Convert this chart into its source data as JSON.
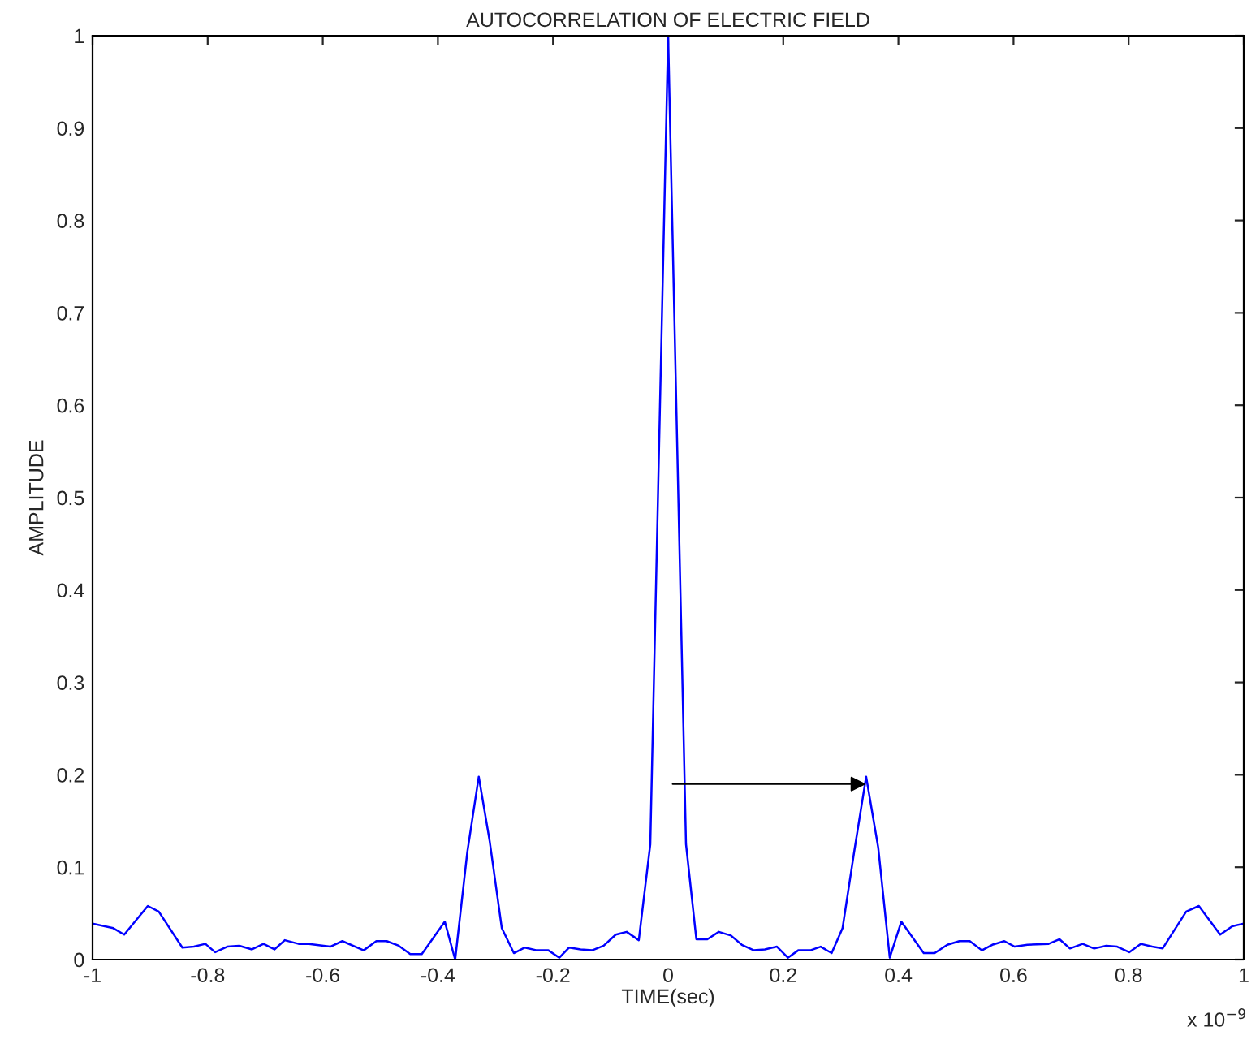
{
  "chart_data": {
    "type": "line",
    "title": "AUTOCORRELATION OF ELECTRIC FIELD",
    "xlabel": "TIME(sec)",
    "ylabel": "AMPLITUDE",
    "xlim": [
      -1,
      1
    ],
    "xticks": [
      -1,
      -0.8,
      -0.6,
      -0.4,
      -0.2,
      0,
      0.2,
      0.4,
      0.6,
      0.8,
      1
    ],
    "ylim": [
      0,
      1
    ],
    "yticks": [
      0,
      0.1,
      0.2,
      0.3,
      0.4,
      0.5,
      0.6,
      0.7,
      0.8,
      0.9,
      1
    ],
    "grid": false,
    "legend": false,
    "line_style": "solid",
    "marker": "none",
    "series": [
      {
        "color": "#0000ff",
        "x": [
          -1,
          -0.964,
          -0.945,
          -0.904,
          -0.885,
          -0.844,
          -0.824,
          -0.804,
          -0.787,
          -0.766,
          -0.745,
          -0.723,
          -0.703,
          -0.684,
          -0.666,
          -0.642,
          -0.624,
          -0.587,
          -0.566,
          -0.529,
          -0.507,
          -0.489,
          -0.468,
          -0.448,
          -0.428,
          -0.388,
          -0.37,
          -0.349,
          -0.329,
          -0.31,
          -0.289,
          -0.268,
          -0.249,
          -0.228,
          -0.208,
          -0.189,
          -0.172,
          -0.152,
          -0.132,
          -0.112,
          -0.091,
          -0.072,
          -0.051,
          -0.031,
          0,
          0.031,
          0.049,
          0.068,
          0.088,
          0.109,
          0.128,
          0.149,
          0.168,
          0.189,
          0.208,
          0.226,
          0.247,
          0.265,
          0.284,
          0.303,
          0.323,
          0.344,
          0.365,
          0.385,
          0.405,
          0.444,
          0.463,
          0.485,
          0.506,
          0.524,
          0.545,
          0.563,
          0.584,
          0.602,
          0.624,
          0.661,
          0.68,
          0.698,
          0.72,
          0.74,
          0.761,
          0.78,
          0.801,
          0.821,
          0.841,
          0.859,
          0.9,
          0.922,
          0.959,
          0.98,
          1
        ],
        "values": [
          0.039,
          0.034,
          0.027,
          0.058,
          0.052,
          0.013,
          0.014,
          0.017,
          0.008,
          0.014,
          0.015,
          0.011,
          0.017,
          0.011,
          0.021,
          0.017,
          0.017,
          0.014,
          0.02,
          0.01,
          0.02,
          0.02,
          0.015,
          0.006,
          0.006,
          0.041,
          0.0,
          0.116,
          0.198,
          0.128,
          0.034,
          0.007,
          0.013,
          0.01,
          0.01,
          0.002,
          0.013,
          0.011,
          0.01,
          0.015,
          0.027,
          0.03,
          0.021,
          0.125,
          1.0,
          0.125,
          0.022,
          0.022,
          0.03,
          0.026,
          0.016,
          0.01,
          0.011,
          0.014,
          0.002,
          0.01,
          0.01,
          0.014,
          0.007,
          0.034,
          0.116,
          0.198,
          0.121,
          0.002,
          0.041,
          0.007,
          0.007,
          0.016,
          0.02,
          0.02,
          0.01,
          0.016,
          0.02,
          0.014,
          0.016,
          0.017,
          0.022,
          0.012,
          0.017,
          0.012,
          0.015,
          0.014,
          0.008,
          0.017,
          0.014,
          0.012,
          0.052,
          0.058,
          0.027,
          0.036,
          0.039
        ]
      }
    ],
    "annotations": [
      "x 10$^{−9}$"
    ]
  }
}
